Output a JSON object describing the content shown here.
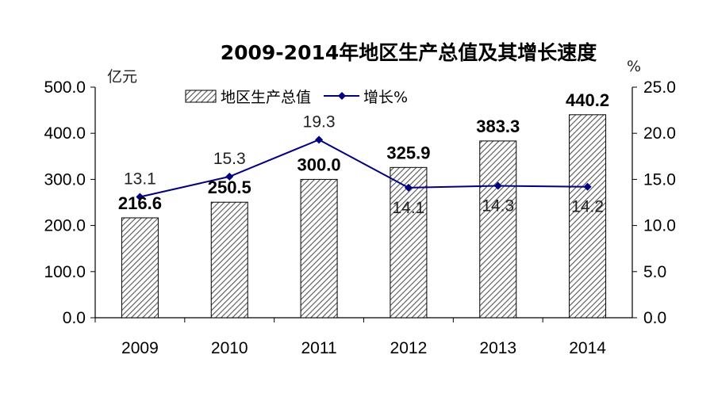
{
  "chart_data": {
    "type": "bar",
    "title": "2009-2014年地区生产总值及其增长速度",
    "categories": [
      "2009",
      "2010",
      "2011",
      "2012",
      "2013",
      "2014"
    ],
    "y_left": {
      "unit": "亿元",
      "range": [
        0,
        500
      ],
      "ticks": [
        "0.0",
        "100.0",
        "200.0",
        "300.0",
        "400.0",
        "500.0"
      ]
    },
    "y_right": {
      "unit": "%",
      "range": [
        0,
        25
      ],
      "ticks": [
        "0.0",
        "5.0",
        "10.0",
        "15.0",
        "20.0",
        "25.0"
      ]
    },
    "series": [
      {
        "name": "地区生产总值",
        "type": "bar",
        "axis": "left",
        "values": [
          216.6,
          250.5,
          300.0,
          325.9,
          383.3,
          440.2
        ],
        "labels": [
          "216.6",
          "250.5",
          "300.0",
          "325.9",
          "383.3",
          "440.2"
        ]
      },
      {
        "name": "增长%",
        "type": "line",
        "axis": "right",
        "color": "#000080",
        "values": [
          13.1,
          15.3,
          19.3,
          14.1,
          14.3,
          14.2
        ],
        "labels": [
          "13.1",
          "15.3",
          "19.3",
          "14.1",
          "14.3",
          "14.2"
        ]
      }
    ],
    "legend_position": "top",
    "grid": false
  }
}
